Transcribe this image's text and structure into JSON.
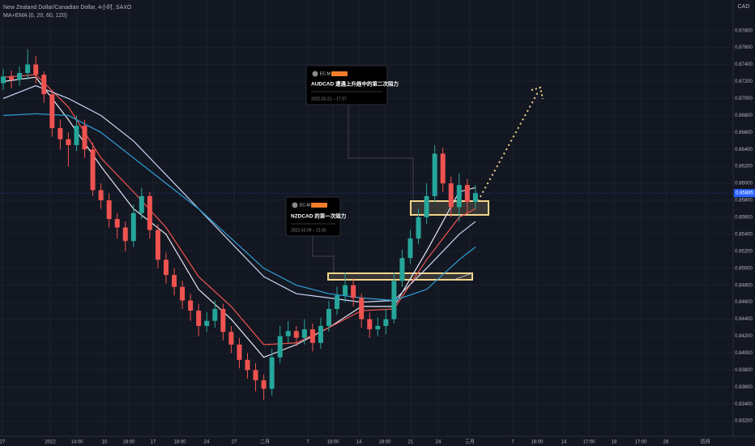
{
  "header": {
    "symbol": "New Zealand Dollar/Canadian Dollar, 4小时, SAXO",
    "indicator": "MA+EMA (0, 20, 60, 120)",
    "currency": "CAD"
  },
  "chart_data": {
    "type": "candlestick",
    "up_color": "#26a69a",
    "down_color": "#ef5350",
    "ylim": [
      0.8302,
      0.8816
    ],
    "yticks": [
      {
        "value": 0.832,
        "label": "0.83200"
      },
      {
        "value": 0.834,
        "label": "0.83400"
      },
      {
        "value": 0.836,
        "label": "0.83600"
      },
      {
        "value": 0.838,
        "label": "0.83800"
      },
      {
        "value": 0.84,
        "label": "0.84000"
      },
      {
        "value": 0.842,
        "label": "0.84200"
      },
      {
        "value": 0.844,
        "label": "0.84400"
      },
      {
        "value": 0.846,
        "label": "0.84600"
      },
      {
        "value": 0.848,
        "label": "0.84800"
      },
      {
        "value": 0.85,
        "label": "0.85000"
      },
      {
        "value": 0.852,
        "label": "0.85200"
      },
      {
        "value": 0.854,
        "label": "0.85400"
      },
      {
        "value": 0.856,
        "label": "0.85600"
      },
      {
        "value": 0.858,
        "label": "0.85800"
      },
      {
        "value": 0.86,
        "label": "0.86000"
      },
      {
        "value": 0.862,
        "label": "0.86200"
      },
      {
        "value": 0.864,
        "label": "0.86400"
      },
      {
        "value": 0.866,
        "label": "0.86600"
      },
      {
        "value": 0.868,
        "label": "0.86800"
      },
      {
        "value": 0.87,
        "label": "0.87000"
      },
      {
        "value": 0.872,
        "label": "0.87200"
      },
      {
        "value": 0.874,
        "label": "0.87400"
      },
      {
        "value": 0.876,
        "label": "0.87600"
      },
      {
        "value": 0.878,
        "label": "0.87800"
      }
    ],
    "x_labels": [
      "27",
      "2022",
      "14:00",
      "10",
      "18:00",
      "17",
      "18:00",
      "24",
      "27",
      "二月",
      "7",
      "18:00",
      "14",
      "18:00",
      "21",
      "24",
      "三月",
      "7",
      "18:00",
      "14",
      "17:00",
      "18",
      "17:00",
      "28",
      "四月"
    ],
    "open": [
      0.8718,
      0.8726,
      0.8722,
      0.873,
      0.874,
      0.8728,
      0.8705,
      0.8665,
      0.8652,
      0.8645,
      0.8668,
      0.864,
      0.8592,
      0.858,
      0.8558,
      0.8548,
      0.8532,
      0.8565,
      0.8585,
      0.8545,
      0.851,
      0.8492,
      0.8478,
      0.8462,
      0.845,
      0.8432,
      0.8438,
      0.8452,
      0.8425,
      0.841,
      0.8392,
      0.838,
      0.8368,
      0.8358,
      0.8395,
      0.842,
      0.8426,
      0.8418,
      0.8428,
      0.8412,
      0.8432,
      0.8452,
      0.8468,
      0.848,
      0.8465,
      0.844,
      0.8428,
      0.8432,
      0.844,
      0.8485,
      0.8512,
      0.8535,
      0.856,
      0.8585,
      0.8635,
      0.86,
      0.8572,
      0.8598,
      0.8578
    ],
    "high": [
      0.8735,
      0.8733,
      0.8738,
      0.8758,
      0.875,
      0.8732,
      0.871,
      0.8675,
      0.866,
      0.868,
      0.8675,
      0.8648,
      0.86,
      0.8588,
      0.8565,
      0.8555,
      0.8575,
      0.8595,
      0.859,
      0.8552,
      0.8518,
      0.85,
      0.8485,
      0.847,
      0.8458,
      0.8448,
      0.8462,
      0.8458,
      0.8432,
      0.8418,
      0.84,
      0.8388,
      0.8375,
      0.8405,
      0.8432,
      0.8438,
      0.8432,
      0.844,
      0.8435,
      0.8442,
      0.8462,
      0.8478,
      0.8495,
      0.8488,
      0.847,
      0.8448,
      0.8442,
      0.8452,
      0.8495,
      0.8522,
      0.8545,
      0.857,
      0.86,
      0.8645,
      0.8642,
      0.8608,
      0.8612,
      0.8605,
      0.8598
    ],
    "low": [
      0.871,
      0.8712,
      0.8715,
      0.8722,
      0.8718,
      0.8695,
      0.8655,
      0.864,
      0.862,
      0.8638,
      0.863,
      0.8585,
      0.857,
      0.8548,
      0.8535,
      0.852,
      0.8525,
      0.8558,
      0.8535,
      0.85,
      0.8482,
      0.8468,
      0.8452,
      0.8438,
      0.842,
      0.8425,
      0.843,
      0.8415,
      0.84,
      0.8382,
      0.837,
      0.8355,
      0.8345,
      0.835,
      0.8388,
      0.8412,
      0.8408,
      0.841,
      0.8402,
      0.8405,
      0.8425,
      0.8445,
      0.846,
      0.8455,
      0.843,
      0.8418,
      0.842,
      0.8422,
      0.8435,
      0.8478,
      0.8505,
      0.8528,
      0.8552,
      0.8578,
      0.859,
      0.856,
      0.8555,
      0.8565,
      0.857
    ],
    "close": [
      0.8726,
      0.8722,
      0.873,
      0.874,
      0.8728,
      0.8705,
      0.8665,
      0.8652,
      0.8645,
      0.8668,
      0.864,
      0.8592,
      0.858,
      0.8558,
      0.8548,
      0.8532,
      0.8565,
      0.8585,
      0.8545,
      0.851,
      0.8492,
      0.8478,
      0.8462,
      0.845,
      0.8432,
      0.8438,
      0.8452,
      0.8425,
      0.841,
      0.8392,
      0.838,
      0.8368,
      0.8358,
      0.8395,
      0.842,
      0.8426,
      0.8418,
      0.8428,
      0.8412,
      0.8432,
      0.8452,
      0.8468,
      0.848,
      0.8465,
      0.844,
      0.8428,
      0.8432,
      0.844,
      0.8485,
      0.8512,
      0.8535,
      0.856,
      0.8585,
      0.8635,
      0.86,
      0.8572,
      0.8598,
      0.8578,
      0.85885
    ],
    "ma_x": [
      0,
      4,
      8,
      12,
      16,
      20,
      24,
      28,
      32,
      36,
      40,
      44,
      48,
      52,
      56,
      58
    ],
    "ma_series": [
      {
        "color": "#e8e8f0",
        "values": [
          0.872,
          0.8725,
          0.8675,
          0.862,
          0.857,
          0.854,
          0.8475,
          0.844,
          0.8395,
          0.841,
          0.843,
          0.8455,
          0.8455,
          0.852,
          0.859,
          0.8595
        ]
      },
      {
        "color": "#f0544f",
        "values": [
          0.8725,
          0.8728,
          0.869,
          0.863,
          0.859,
          0.8548,
          0.849,
          0.8455,
          0.841,
          0.8412,
          0.843,
          0.845,
          0.8452,
          0.851,
          0.856,
          0.857
        ]
      },
      {
        "color": "#c9d6f2",
        "values": [
          0.87,
          0.8715,
          0.87,
          0.868,
          0.865,
          0.861,
          0.857,
          0.853,
          0.849,
          0.847,
          0.8465,
          0.846,
          0.8462,
          0.85,
          0.854,
          0.8555
        ]
      },
      {
        "color": "#2f9fd8",
        "values": [
          0.868,
          0.8682,
          0.868,
          0.866,
          0.863,
          0.86,
          0.857,
          0.8535,
          0.85,
          0.848,
          0.847,
          0.8465,
          0.8462,
          0.8475,
          0.851,
          0.8525
        ]
      }
    ]
  },
  "annotations": [
    {
      "author": "EC-M",
      "title": "AUDCAD 遭遇上升趋中的第二次阻力",
      "date": "2022-02-21 – 17:37"
    },
    {
      "author": "EC-M",
      "title": "NZDCAD 的第一次阻力",
      "date": "2022-02-09 – 21:55"
    }
  ]
}
